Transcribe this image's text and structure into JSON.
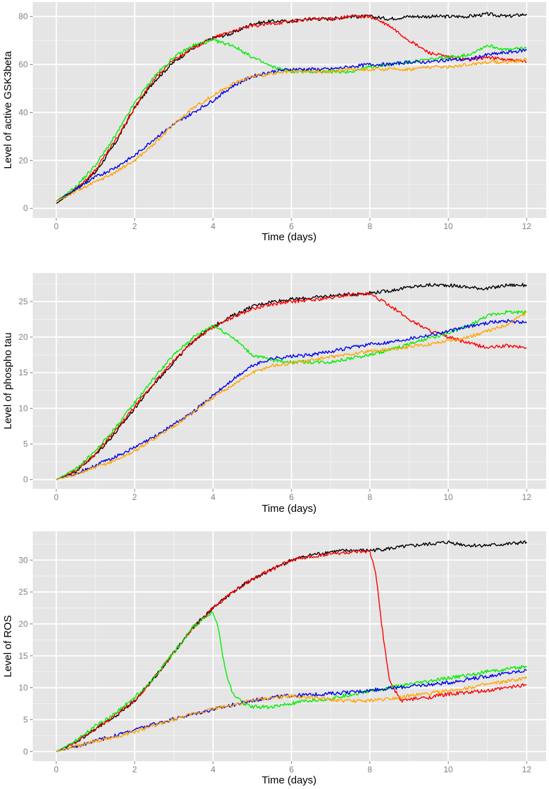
{
  "chart_data": [
    {
      "type": "line",
      "xlabel": "Time (days)",
      "ylabel": "Level of active GSK3beta",
      "xlim": [
        -0.6,
        12.5
      ],
      "ylim": [
        -4,
        86
      ],
      "xticks": [
        "0",
        "2",
        "4",
        "6",
        "8",
        "10",
        "12"
      ],
      "yticks": [
        "0",
        "20",
        "40",
        "60",
        "80"
      ],
      "grid": true,
      "series": [
        {
          "color": "#000000",
          "x": [
            0,
            0.5,
            1,
            1.5,
            2,
            2.5,
            3,
            3.5,
            4,
            4.5,
            5,
            5.5,
            6,
            6.5,
            7,
            7.5,
            8,
            8.5,
            9,
            9.5,
            10,
            10.5,
            11,
            11.5,
            12
          ],
          "values": [
            2,
            8,
            15,
            27,
            42,
            53,
            61,
            67,
            71,
            73,
            77,
            78,
            78,
            79,
            79,
            80,
            80,
            79,
            80,
            80,
            80,
            80,
            81,
            80,
            81
          ]
        },
        {
          "color": "#ff0000",
          "x": [
            0,
            0.5,
            1,
            1.5,
            2,
            2.5,
            3,
            3.5,
            4,
            4.5,
            5,
            5.5,
            6,
            6.5,
            7,
            7.5,
            8,
            8.5,
            9,
            9.5,
            10,
            10.5,
            11,
            11.5,
            12
          ],
          "values": [
            3,
            8,
            16,
            28,
            42,
            54,
            62,
            67,
            71,
            74,
            76,
            77,
            78,
            79,
            79,
            80,
            80,
            76,
            70,
            65,
            63,
            62,
            63,
            62,
            61
          ]
        },
        {
          "color": "#00ee00",
          "x": [
            0,
            0.5,
            1,
            1.5,
            2,
            2.5,
            3,
            3.5,
            4,
            4.5,
            5,
            5.5,
            6,
            6.5,
            7,
            7.5,
            8,
            8.5,
            9,
            9.5,
            10,
            10.5,
            11,
            11.5,
            12
          ],
          "values": [
            3,
            9,
            18,
            30,
            44,
            55,
            63,
            68,
            70,
            68,
            63,
            59,
            57,
            57,
            57,
            57,
            59,
            60,
            61,
            62,
            63,
            64,
            68,
            66,
            67
          ]
        },
        {
          "color": "#0000ee",
          "x": [
            0,
            0.5,
            1,
            1.5,
            2,
            2.5,
            3,
            3.5,
            4,
            4.5,
            5,
            5.5,
            6,
            6.5,
            7,
            7.5,
            8,
            8.5,
            9,
            9.5,
            10,
            10.5,
            11,
            11.5,
            12
          ],
          "values": [
            3,
            8,
            13,
            17,
            22,
            29,
            35,
            40,
            45,
            51,
            55,
            57,
            58,
            58,
            58,
            59,
            60,
            60,
            61,
            61,
            62,
            62,
            64,
            65,
            66
          ]
        },
        {
          "color": "#ffa500",
          "x": [
            0,
            0.5,
            1,
            1.5,
            2,
            2.5,
            3,
            3.5,
            4,
            4.5,
            5,
            5.5,
            6,
            6.5,
            7,
            7.5,
            8,
            8.5,
            9,
            9.5,
            10,
            10.5,
            11,
            11.5,
            12
          ],
          "values": [
            3,
            7,
            11,
            15,
            20,
            27,
            35,
            42,
            47,
            52,
            55,
            56,
            57,
            57,
            57,
            58,
            58,
            58,
            58,
            59,
            59,
            60,
            61,
            61,
            62
          ]
        }
      ]
    },
    {
      "type": "line",
      "xlabel": "Time (days)",
      "ylabel": "Level of phospho tau",
      "xlim": [
        -0.6,
        12.5
      ],
      "ylim": [
        -1.3,
        29
      ],
      "xticks": [
        "0",
        "2",
        "4",
        "6",
        "8",
        "10",
        "12"
      ],
      "yticks": [
        "0",
        "5",
        "10",
        "15",
        "20",
        "25"
      ],
      "grid": true,
      "series": [
        {
          "color": "#000000",
          "x": [
            0,
            0.5,
            1,
            1.5,
            2,
            2.5,
            3,
            3.5,
            4,
            4.5,
            5,
            5.5,
            6,
            6.5,
            7,
            7.5,
            8,
            8.5,
            9,
            9.5,
            10,
            10.5,
            11,
            11.5,
            12
          ],
          "values": [
            0,
            1.2,
            3.5,
            6.5,
            10,
            13.5,
            16.5,
            19.5,
            21.5,
            23,
            24.3,
            25,
            25.3,
            25.5,
            25.8,
            26,
            26.2,
            26.5,
            27,
            27.3,
            27.3,
            27,
            26.8,
            27.3,
            27.3
          ]
        },
        {
          "color": "#ff0000",
          "x": [
            0,
            0.5,
            1,
            1.5,
            2,
            2.5,
            3,
            3.5,
            4,
            4.5,
            5,
            5.5,
            6,
            6.5,
            7,
            7.5,
            8,
            8.5,
            9,
            9.5,
            10,
            10.5,
            11,
            11.5,
            12
          ],
          "values": [
            0,
            1.3,
            3.6,
            6.8,
            10.2,
            13.6,
            16.7,
            19.5,
            21.3,
            22.8,
            24,
            24.6,
            25,
            25.2,
            25.5,
            26,
            26,
            24.5,
            22.5,
            21,
            20,
            19.2,
            18.5,
            18.8,
            18.5
          ]
        },
        {
          "color": "#00ee00",
          "x": [
            0,
            0.5,
            1,
            1.5,
            2,
            2.5,
            3,
            3.5,
            4,
            4.5,
            5,
            5.5,
            6,
            6.5,
            7,
            7.5,
            8,
            8.5,
            9,
            9.5,
            10,
            10.5,
            11,
            11.5,
            12
          ],
          "values": [
            0,
            1.5,
            4,
            7.2,
            10.8,
            14.3,
            17.5,
            20,
            21.7,
            20,
            17.5,
            16.8,
            16.5,
            16.5,
            16.5,
            17,
            17.5,
            18.2,
            19,
            19.8,
            20.5,
            21.5,
            23,
            23.5,
            23.5
          ]
        },
        {
          "color": "#0000ee",
          "x": [
            0,
            0.5,
            1,
            1.5,
            2,
            2.5,
            3,
            3.5,
            4,
            4.5,
            5,
            5.5,
            6,
            6.5,
            7,
            7.5,
            8,
            8.5,
            9,
            9.5,
            10,
            10.5,
            11,
            11.5,
            12
          ],
          "values": [
            0,
            0.8,
            2,
            3.2,
            4.5,
            6,
            7.8,
            9.5,
            11.8,
            14,
            16,
            17,
            17.3,
            17.5,
            18,
            18.5,
            19,
            19.3,
            19.8,
            20.3,
            20.8,
            21.5,
            22,
            22.3,
            22
          ]
        },
        {
          "color": "#ffa500",
          "x": [
            0,
            0.5,
            1,
            1.5,
            2,
            2.5,
            3,
            3.5,
            4,
            4.5,
            5,
            5.5,
            6,
            6.5,
            7,
            7.5,
            8,
            8.5,
            9,
            9.5,
            10,
            10.5,
            11,
            11.5,
            12
          ],
          "values": [
            0,
            0.7,
            1.7,
            2.7,
            4,
            5.8,
            7.5,
            9.5,
            11.5,
            13.3,
            15,
            16,
            16.3,
            16.8,
            17.2,
            17.6,
            18,
            18.3,
            18.6,
            19,
            19.5,
            20,
            20.8,
            21.8,
            23.5
          ]
        }
      ]
    },
    {
      "type": "line",
      "xlabel": "Time (days)",
      "ylabel": "Level of ROS",
      "xlim": [
        -0.6,
        12.5
      ],
      "ylim": [
        -1.5,
        34.5
      ],
      "xticks": [
        "0",
        "2",
        "4",
        "6",
        "8",
        "10",
        "12"
      ],
      "yticks": [
        "0",
        "5",
        "10",
        "15",
        "20",
        "25",
        "30"
      ],
      "grid": true,
      "series": [
        {
          "color": "#000000",
          "x": [
            0,
            0.5,
            1,
            1.5,
            2,
            2.5,
            3,
            3.5,
            4,
            4.5,
            5,
            5.5,
            6,
            6.5,
            7,
            7.5,
            8,
            8.5,
            9,
            9.5,
            10,
            10.5,
            11,
            11.5,
            12
          ],
          "values": [
            0,
            1.5,
            3.5,
            5.5,
            8,
            11.5,
            15.5,
            19.5,
            22.5,
            25,
            27,
            28.5,
            30,
            30.8,
            31.3,
            31.5,
            31.5,
            31.8,
            32.2,
            32.5,
            32.8,
            32.3,
            32.3,
            32.5,
            32.8
          ]
        },
        {
          "color": "#ff0000",
          "x": [
            0,
            0.5,
            1,
            1.5,
            2,
            2.5,
            3,
            3.5,
            4,
            4.5,
            5,
            5.5,
            6,
            6.5,
            7,
            7.5,
            8,
            8.15,
            8.3,
            8.5,
            8.8,
            9.5,
            10,
            11,
            12
          ],
          "values": [
            0,
            1.5,
            3.5,
            5.7,
            8,
            11.5,
            15.5,
            19.5,
            22.5,
            25,
            27,
            28.5,
            30,
            30.5,
            31,
            31.2,
            31.3,
            28,
            20,
            11,
            8,
            8.5,
            9,
            9.5,
            10.5
          ]
        },
        {
          "color": "#00ee00",
          "x": [
            0,
            0.5,
            1,
            1.5,
            2,
            2.5,
            3,
            3.5,
            4,
            4.15,
            4.3,
            4.5,
            4.8,
            5,
            5.5,
            6,
            6.5,
            7,
            8,
            9,
            10,
            11,
            12
          ],
          "values": [
            0,
            1.7,
            4,
            6,
            8.5,
            11.5,
            15.5,
            19.5,
            22,
            19,
            13,
            9,
            7.5,
            7,
            7,
            7.5,
            8,
            8.3,
            9.5,
            10.5,
            11.5,
            12.5,
            13.3
          ]
        },
        {
          "color": "#0000ee",
          "x": [
            0,
            0.5,
            1,
            1.5,
            2,
            2.5,
            3,
            3.5,
            4,
            4.5,
            5,
            5.5,
            6,
            6.5,
            7,
            7.5,
            8,
            8.5,
            9,
            9.5,
            10,
            10.5,
            11,
            11.5,
            12
          ],
          "values": [
            0,
            0.8,
            1.7,
            2.5,
            3.4,
            4.3,
            5.1,
            5.9,
            6.6,
            7.3,
            8,
            8.5,
            8.8,
            8.9,
            9.1,
            9.3,
            9.6,
            9.9,
            10.2,
            10.5,
            10.8,
            11.3,
            11.8,
            12.3,
            12.7
          ]
        },
        {
          "color": "#ffa500",
          "x": [
            0,
            0.5,
            1,
            1.5,
            2,
            2.5,
            3,
            3.5,
            4,
            4.5,
            5,
            5.5,
            6,
            6.5,
            7,
            7.5,
            8,
            8.5,
            9,
            9.5,
            10,
            10.5,
            11,
            11.5,
            12
          ],
          "values": [
            0,
            0.8,
            1.6,
            2.3,
            3.1,
            4.1,
            5,
            5.9,
            6.7,
            7.3,
            8,
            8.4,
            8.7,
            8.5,
            8.1,
            7.9,
            8,
            8.3,
            8.7,
            9.1,
            9.5,
            10,
            10.5,
            11,
            11.5
          ]
        }
      ]
    }
  ]
}
